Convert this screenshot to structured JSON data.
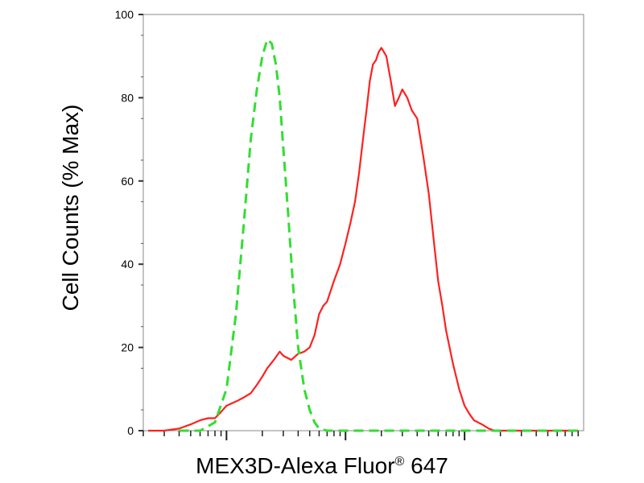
{
  "chart_data": {
    "type": "line",
    "title": "",
    "xlabel": "MEX3D-Alexa Fluor",
    "xlabel_superscript": "®",
    "xlabel_suffix": " 647",
    "ylabel": "Cell Counts (% Max)",
    "ylim": [
      0,
      100
    ],
    "yticks": [
      0,
      20,
      40,
      60,
      80,
      100
    ],
    "xscale": "log",
    "xlim": [
      0.2,
      1000
    ],
    "xmajor": [
      1,
      10,
      100
    ],
    "grid": false,
    "series": [
      {
        "color": "#ff2020",
        "style": "solid",
        "x": [
          0.22,
          0.3,
          0.4,
          0.5,
          0.6,
          0.7,
          0.8,
          0.9,
          1.0,
          1.2,
          1.4,
          1.6,
          1.8,
          2.0,
          2.2,
          2.5,
          2.8,
          3.0,
          3.5,
          4.0,
          4.5,
          5.0,
          5.5,
          6.0,
          6.5,
          7.0,
          8.0,
          9.0,
          10,
          11,
          12,
          13,
          14,
          15,
          16,
          17,
          18,
          19,
          20,
          22,
          24,
          26,
          28,
          30,
          33,
          36,
          40,
          45,
          50,
          55,
          60,
          65,
          70,
          80,
          90,
          100,
          110,
          120,
          140,
          160,
          180,
          200,
          250,
          300,
          400,
          600,
          900
        ],
        "values": [
          0,
          0,
          0.5,
          1.5,
          2.5,
          3,
          3,
          4.5,
          6,
          7,
          8,
          9,
          11,
          13,
          15,
          17,
          19,
          18,
          17,
          18.5,
          19,
          20,
          23,
          28,
          30,
          31,
          36,
          40,
          45,
          50,
          55,
          62,
          70,
          77,
          84,
          88,
          89,
          91,
          92,
          90,
          84,
          78,
          80,
          82,
          80,
          77,
          75,
          66,
          57,
          46,
          36,
          30,
          24,
          16,
          10,
          6,
          4,
          2.5,
          1.5,
          0.5,
          0,
          0,
          0,
          0,
          0,
          0,
          0
        ]
      },
      {
        "color": "#33dd33",
        "style": "dashed",
        "x": [
          0.4,
          0.6,
          0.8,
          1.0,
          1.2,
          1.4,
          1.6,
          1.8,
          2.0,
          2.2,
          2.4,
          2.6,
          2.8,
          3.0,
          3.3,
          3.6,
          4.0,
          4.5,
          5.0,
          5.5,
          6.0,
          7.0,
          8.0,
          10,
          20,
          50,
          100,
          200,
          500,
          900
        ],
        "values": [
          0,
          0,
          2,
          10,
          28,
          50,
          70,
          82,
          90,
          94,
          93,
          88,
          80,
          68,
          52,
          36,
          20,
          10,
          5,
          2,
          0.5,
          0,
          0,
          0,
          0,
          0,
          0,
          0,
          0,
          0
        ]
      }
    ]
  }
}
